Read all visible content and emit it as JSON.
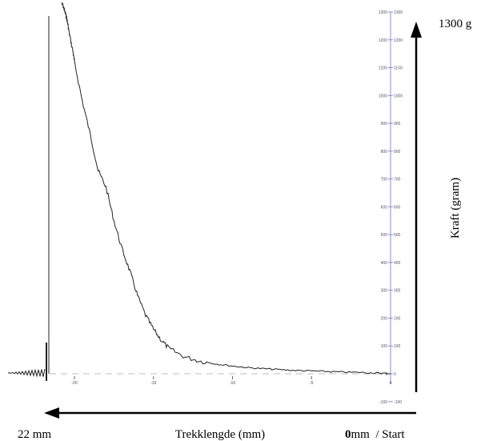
{
  "chart_data": {
    "type": "line",
    "title": "",
    "xlabel": "Trekklengde (mm)",
    "ylabel": "Kraft (gram)",
    "x_axis_direction": "reversed",
    "x_min_label": "22 mm",
    "x_zero_label_bold": "0",
    "x_zero_label_rest": "mm  / Start",
    "y_max_label": "1300 g",
    "xlim": [
      0,
      -21
    ],
    "ylim": [
      -100,
      1300
    ],
    "x_ticks": [
      {
        "value": -20,
        "label": "-20"
      },
      {
        "value": -15,
        "label": "-15"
      },
      {
        "value": -10,
        "label": "-10"
      },
      {
        "value": -5,
        "label": "-5"
      },
      {
        "value": 0,
        "label": "0"
      }
    ],
    "y_ticks": [
      {
        "value": 1300,
        "label": "1300"
      },
      {
        "value": 1200,
        "label": "1200"
      },
      {
        "value": 1100,
        "label": "1100"
      },
      {
        "value": 1000,
        "label": "1000"
      },
      {
        "value": 900,
        "label": "900"
      },
      {
        "value": 800,
        "label": "800"
      },
      {
        "value": 700,
        "label": "700"
      },
      {
        "value": 600,
        "label": "600"
      },
      {
        "value": 500,
        "label": "500"
      },
      {
        "value": 400,
        "label": "400"
      },
      {
        "value": 300,
        "label": "300"
      },
      {
        "value": 200,
        "label": "200"
      },
      {
        "value": 100,
        "label": "100"
      },
      {
        "value": 0,
        "label": "0"
      },
      {
        "value": -100,
        "label": "-100"
      }
    ],
    "grid": false,
    "colors": {
      "curve": "#222222",
      "y_axis": "#8888dd",
      "zero_line": "#bbbbcc",
      "arrows": "#000000"
    },
    "series": [
      {
        "x": [
          -20.8,
          -20.7,
          -20.6,
          -20.5,
          -20.4,
          -20.3,
          -20.1,
          -20.0,
          -19.5,
          -19.0,
          -18.5,
          -18.0,
          -17.5,
          -17.0,
          -16.5,
          -16.0,
          -15.5,
          -15.0,
          -14.5,
          -14.0,
          -13.0,
          -12.0,
          -11.0,
          -10.0,
          -9.0,
          -8.0,
          -7.0,
          -6.0,
          -5.0,
          -4.0,
          -3.0,
          -2.0,
          -1.0,
          -0.5,
          0.0
        ],
        "y": [
          1330,
          1320,
          1300,
          1280,
          1250,
          1215,
          1160,
          1120,
          980,
          860,
          730,
          670,
          550,
          450,
          370,
          280,
          210,
          160,
          120,
          90,
          60,
          45,
          35,
          28,
          22,
          18,
          15,
          12,
          10,
          8,
          6,
          5,
          3,
          2,
          1
        ]
      }
    ]
  }
}
